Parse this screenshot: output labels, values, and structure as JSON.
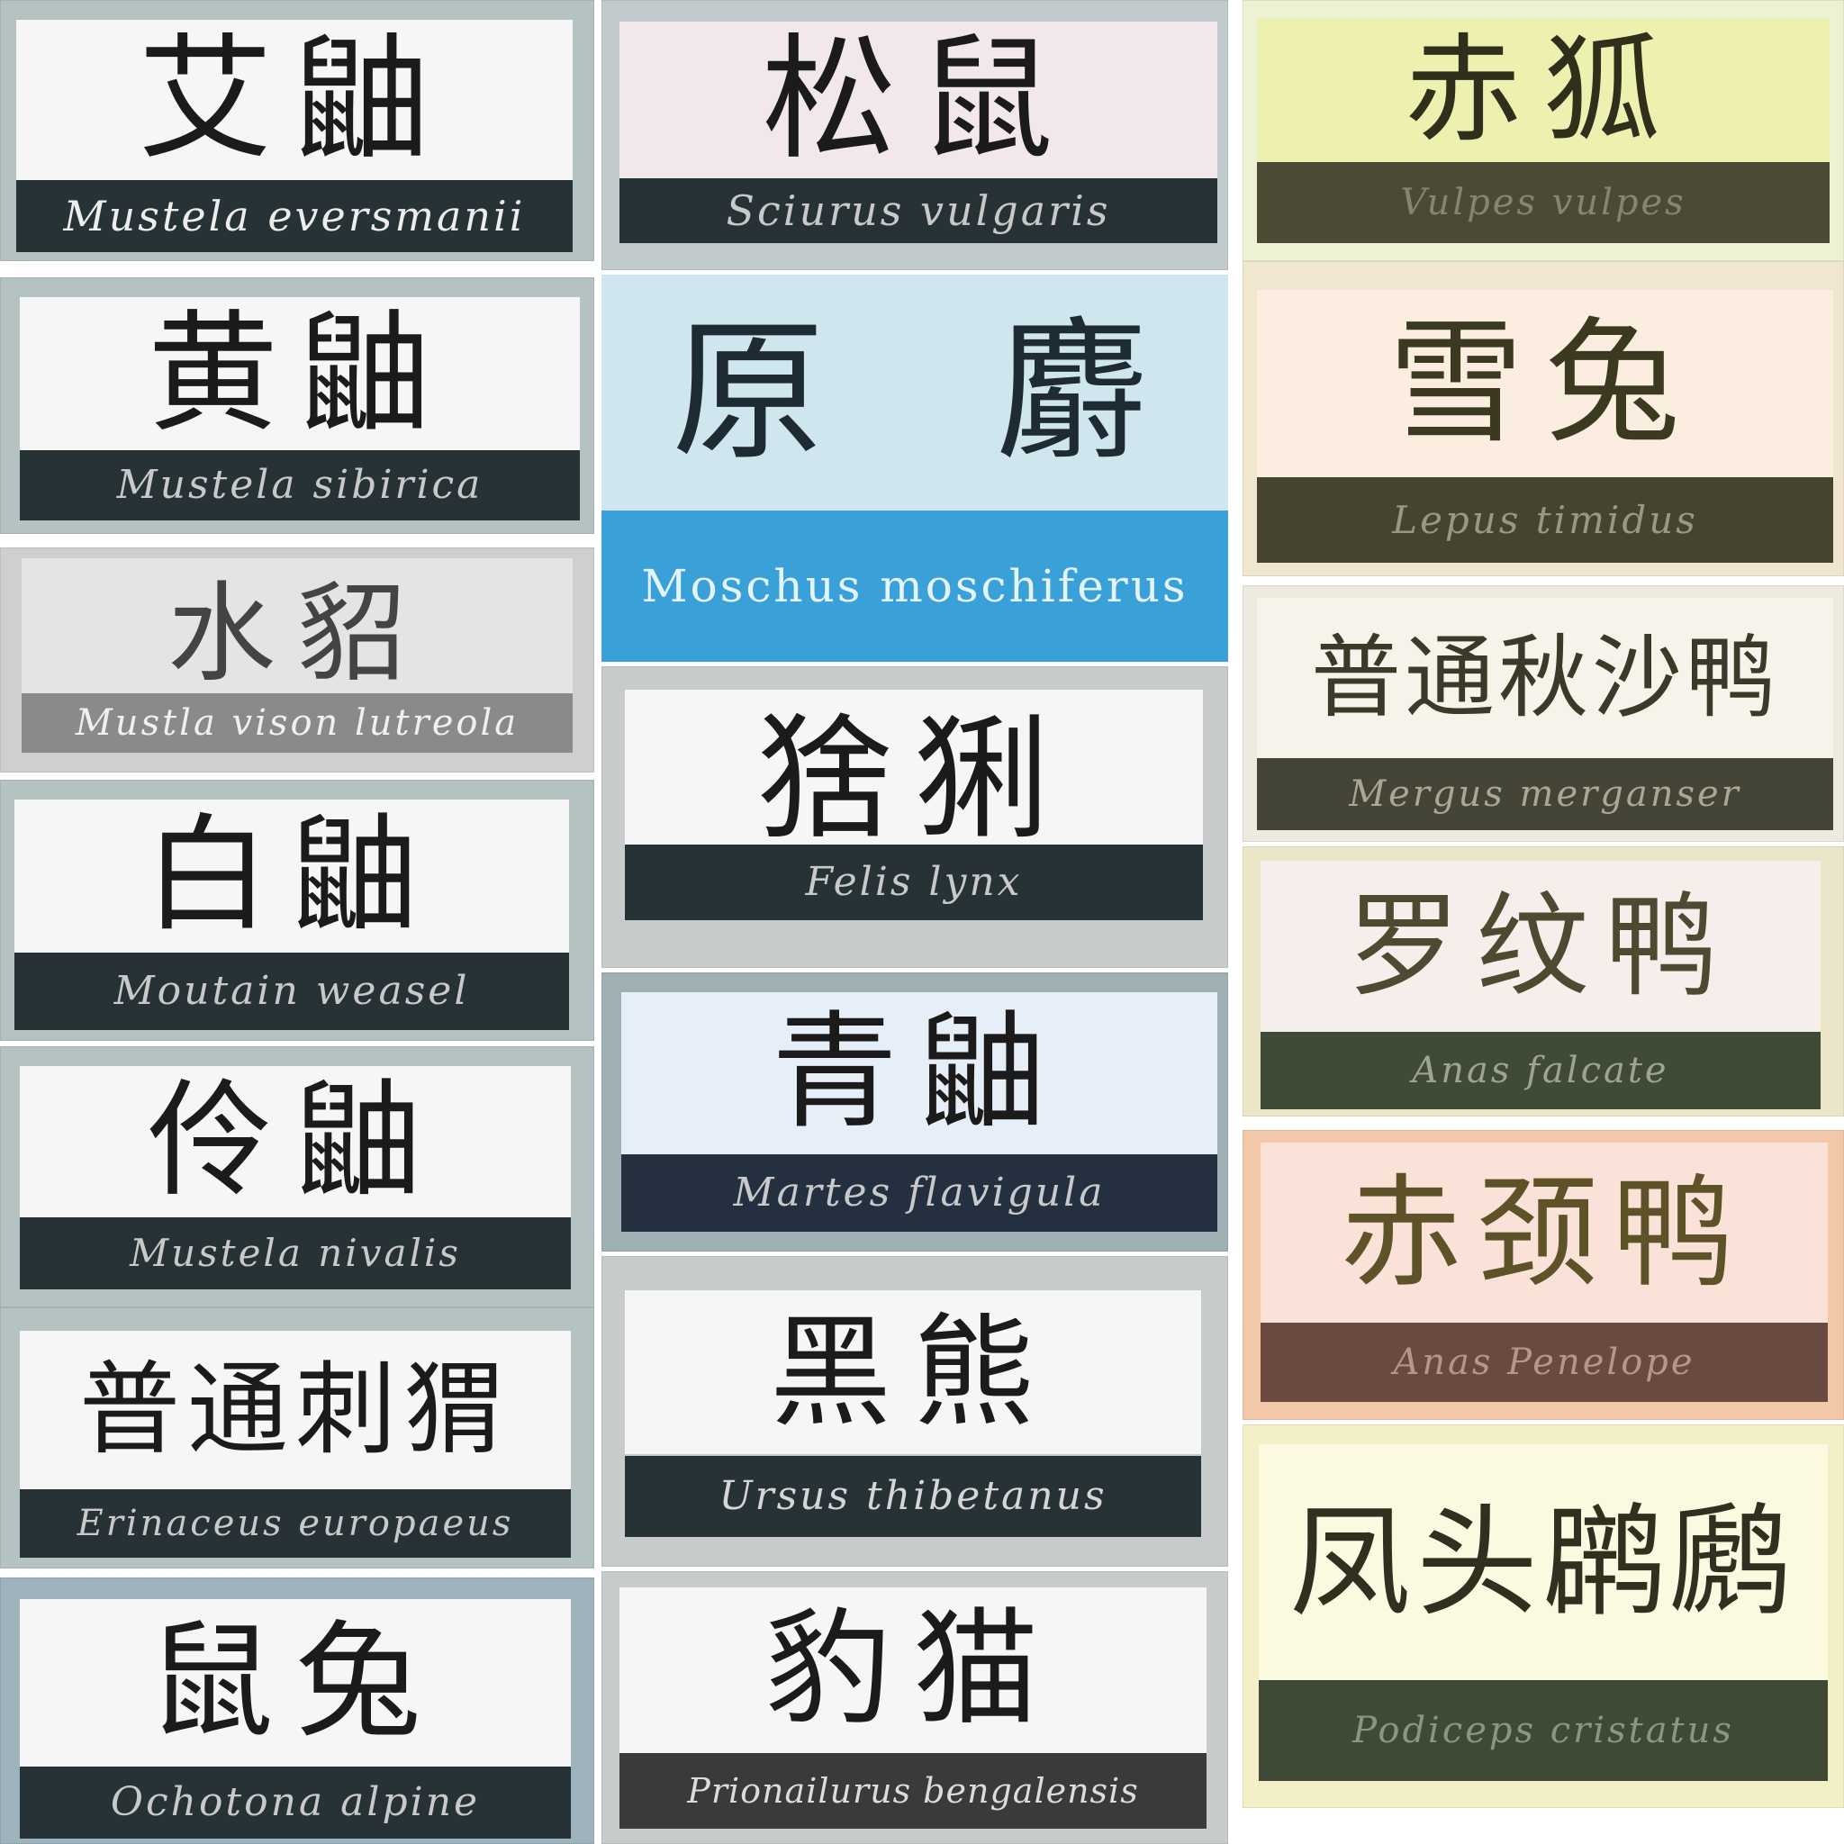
{
  "labels": [
    {
      "chinese": "艾鼬",
      "latin": "Mustela eversmanii"
    },
    {
      "chinese": "黄鼬",
      "latin": "Mustela sibirica"
    },
    {
      "chinese": "水貂",
      "latin": "Mustla vison lutreola"
    },
    {
      "chinese": "白鼬",
      "latin": "Moutain weasel"
    },
    {
      "chinese": "伶鼬",
      "latin": "Mustela nivalis"
    },
    {
      "chinese": "普通刺猬",
      "latin": "Erinaceus europaeus"
    },
    {
      "chinese": "鼠兔",
      "latin": "Ochotona alpine"
    },
    {
      "chinese": "松鼠",
      "latin": "Sciurus vulgaris"
    },
    {
      "chinese": "原　麝",
      "latin": "Moschus moschiferus"
    },
    {
      "chinese": "猞猁",
      "latin": "Felis lynx"
    },
    {
      "chinese": "青鼬",
      "latin": "Martes flavigula"
    },
    {
      "chinese": "黑熊",
      "latin": "Ursus thibetanus"
    },
    {
      "chinese": "豹猫",
      "latin": "Prionailurus bengalensis"
    },
    {
      "chinese": "赤狐",
      "latin": "Vulpes vulpes"
    },
    {
      "chinese": "雪兔",
      "latin": "Lepus timidus"
    },
    {
      "chinese": "普通秋沙鸭",
      "latin": "Mergus merganser"
    },
    {
      "chinese": "罗纹鸭",
      "latin": "Anas falcate"
    },
    {
      "chinese": "赤颈鸭",
      "latin": "Anas Penelope"
    },
    {
      "chinese": "凤头䴙䴘",
      "latin": "Podiceps cristatus"
    }
  ],
  "colors": {
    "dark_band": "#263238",
    "light_face": "#f4f4f4",
    "blue_band": "#3aa0d8",
    "yellow_face": "#eef0b0",
    "peach_face": "#fbeee0"
  }
}
